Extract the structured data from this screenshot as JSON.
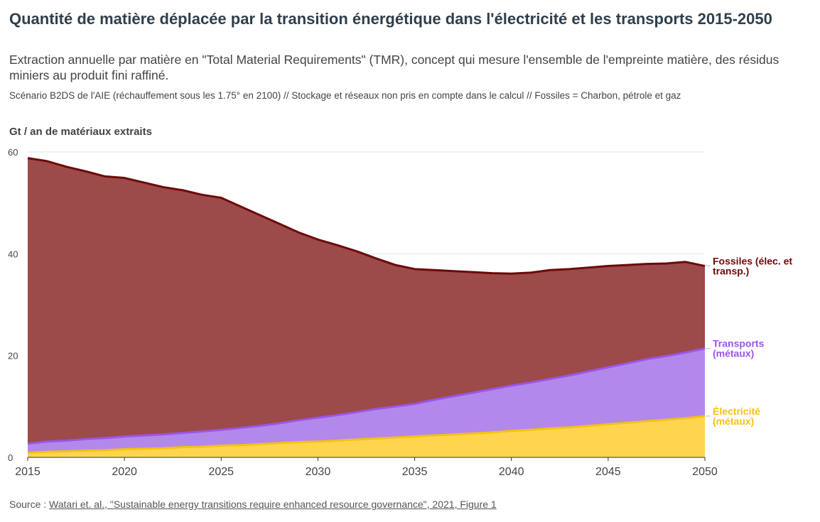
{
  "title": "Quantité de matière déplacée par la transition énergétique dans l'électricité et les transports 2015-2050",
  "subtitle": "Extraction annuelle par matière en \"Total Material Requirements\" (TMR), concept qui mesure l'ensemble de l'empreinte matière, des résidus miniers au produit fini raffiné.",
  "notes": "Scénario B2DS de l'AIE (réchauffement sous les 1.75° en 2100) // Stockage et réseaux non pris en compte dans le calcul // Fossiles = Charbon, pétrole et gaz",
  "y_axis_label": "Gt / an de matériaux extraits",
  "source": {
    "prefix": "Source : ",
    "link_text": "Watari et. al., \"Sustainable energy transitions require enhanced resource governance\", 2021, Figure 1"
  },
  "chart_data": {
    "type": "area",
    "stacked": true,
    "x": [
      2015,
      2016,
      2017,
      2018,
      2019,
      2020,
      2021,
      2022,
      2023,
      2024,
      2025,
      2026,
      2027,
      2028,
      2029,
      2030,
      2031,
      2032,
      2033,
      2034,
      2035,
      2036,
      2037,
      2038,
      2039,
      2040,
      2041,
      2042,
      2043,
      2044,
      2045,
      2046,
      2047,
      2048,
      2049,
      2050
    ],
    "series": [
      {
        "name": "Électricité (métaux)",
        "color": "#ffd54f",
        "line_color": "#f5c211",
        "values": [
          0.9,
          1.1,
          1.2,
          1.3,
          1.4,
          1.6,
          1.7,
          1.8,
          2.0,
          2.1,
          2.3,
          2.4,
          2.6,
          2.8,
          3.0,
          3.1,
          3.3,
          3.5,
          3.7,
          3.9,
          4.1,
          4.3,
          4.5,
          4.7,
          4.9,
          5.2,
          5.4,
          5.7,
          5.9,
          6.2,
          6.5,
          6.8,
          7.1,
          7.4,
          7.7,
          8.1
        ]
      },
      {
        "name": "Transports (métaux)",
        "color": "#b388eb",
        "line_color": "#9b55e6",
        "values": [
          1.8,
          2.0,
          2.1,
          2.3,
          2.4,
          2.5,
          2.6,
          2.7,
          2.8,
          3.0,
          3.1,
          3.4,
          3.6,
          3.9,
          4.3,
          4.7,
          5.0,
          5.4,
          5.8,
          6.1,
          6.4,
          7.0,
          7.5,
          8.0,
          8.5,
          8.9,
          9.3,
          9.7,
          10.2,
          10.7,
          11.2,
          11.7,
          12.2,
          12.5,
          12.9,
          13.3
        ]
      },
      {
        "name": "Fossiles (élec. et transp.)",
        "color": "#9c4a4a",
        "line_color": "#6d0a0a",
        "values": [
          56.1,
          55.1,
          53.8,
          52.6,
          51.4,
          50.8,
          49.7,
          48.6,
          47.7,
          46.5,
          45.6,
          43.5,
          41.4,
          39.2,
          36.9,
          35.0,
          33.4,
          31.6,
          29.6,
          27.8,
          26.5,
          25.5,
          24.6,
          23.7,
          22.8,
          22.0,
          21.6,
          21.4,
          20.9,
          20.4,
          19.9,
          19.3,
          18.7,
          18.2,
          17.8,
          16.2
        ]
      }
    ],
    "series_labels": [
      {
        "lines": [
          "Fossiles (élec. et",
          "transp.)"
        ]
      },
      {
        "lines": [
          "Transports",
          "(métaux)"
        ]
      },
      {
        "lines": [
          "Électricité",
          "(métaux)"
        ]
      }
    ],
    "x_ticks": [
      "2015",
      "2020",
      "2025",
      "2030",
      "2035",
      "2040",
      "2045",
      "2050"
    ],
    "y_ticks": [
      "0",
      "20",
      "40",
      "60"
    ],
    "xlim": [
      2015,
      2050
    ],
    "ylim": [
      0,
      60
    ],
    "grid": true,
    "legend": "direct labels on right"
  }
}
